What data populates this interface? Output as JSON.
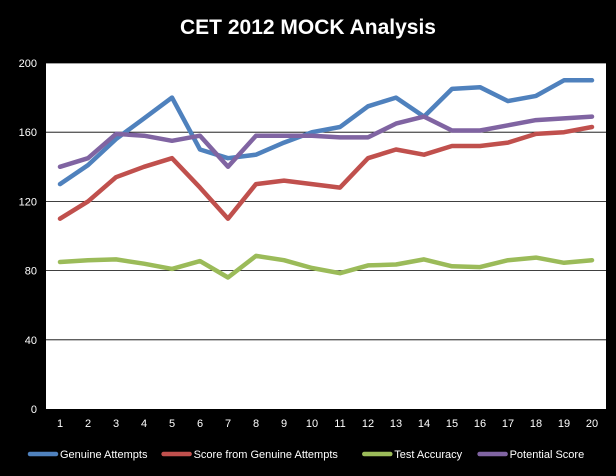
{
  "chart_data": {
    "type": "line",
    "title": "CET 2012 MOCK Analysis",
    "xlabel": "",
    "ylabel": "",
    "x": [
      "1",
      "2",
      "3",
      "4",
      "5",
      "6",
      "7",
      "8",
      "9",
      "10",
      "11",
      "12",
      "13",
      "14",
      "15",
      "16",
      "17",
      "18",
      "19",
      "20"
    ],
    "ylim": [
      0,
      200
    ],
    "yticks": [
      "0",
      "40",
      "80",
      "120",
      "160",
      "200"
    ],
    "grid": true,
    "legend_position": "bottom",
    "series": [
      {
        "name": "Genuine Attempts",
        "color": "#4f81bd",
        "values": [
          130,
          141,
          156,
          168,
          180,
          150,
          145,
          147,
          154,
          160,
          163,
          175,
          180,
          169,
          185,
          186,
          178,
          181,
          190,
          190
        ]
      },
      {
        "name": "Score from Genuine Attempts",
        "color": "#c0504d",
        "values": [
          110,
          120,
          134,
          140,
          145,
          128,
          110,
          130,
          132,
          130,
          128,
          145,
          150,
          147,
          152,
          152,
          154,
          159,
          160,
          163
        ]
      },
      {
        "name": "Test Accuracy",
        "color": "#9bbb59",
        "values": [
          85,
          86,
          86.5,
          84,
          81,
          85.5,
          76,
          88.5,
          86,
          81.5,
          78.5,
          83,
          83.5,
          86.5,
          82.5,
          82,
          86,
          87.5,
          84.5,
          86
        ]
      },
      {
        "name": "Potential Score",
        "color": "#8064a2",
        "values": [
          140,
          145,
          159,
          158,
          155,
          158,
          140,
          158,
          158,
          158,
          157,
          157,
          165,
          169,
          161,
          161,
          164,
          167,
          168,
          169
        ]
      }
    ]
  }
}
